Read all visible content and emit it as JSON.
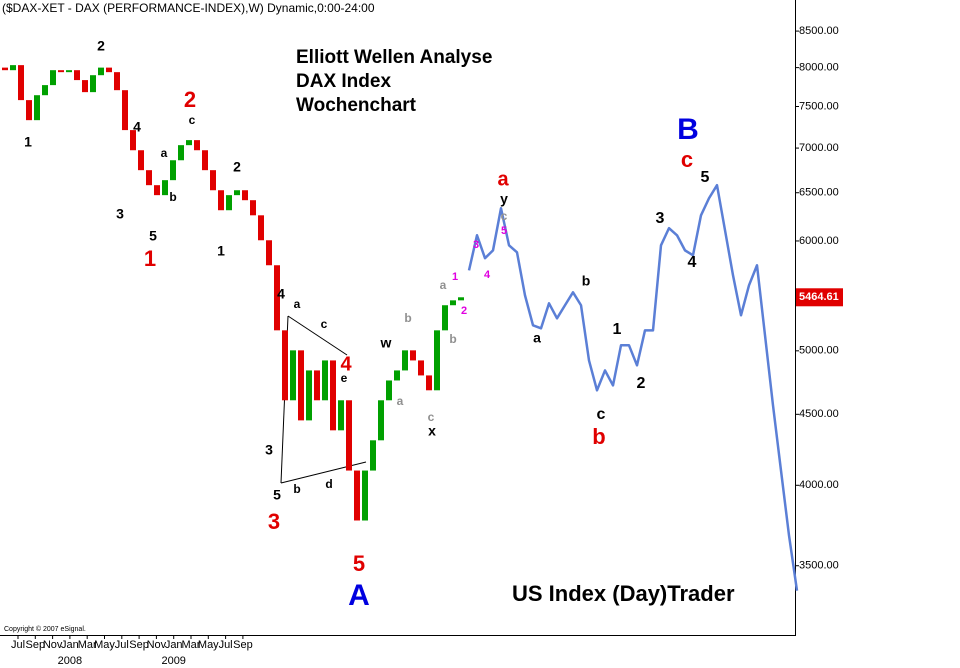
{
  "chart_data": {
    "type": "candlestick",
    "title": "($DAX-XET - DAX (PERFORMANCE-INDEX),W) Dynamic,0:00-24:00",
    "texts": [
      "Elliott Wellen Analyse",
      "DAX Index",
      "Wochenchart"
    ],
    "footer": "US Index (Day)Trader",
    "copyright": "Copyright © 2007 eSignal.",
    "log_scale": true,
    "ylim": [
      3120,
      8950
    ],
    "yticks": [
      {
        "value": 3500,
        "label": "3500.00"
      },
      {
        "value": 4000,
        "label": "4000.00"
      },
      {
        "value": 4500,
        "label": "4500.00"
      },
      {
        "value": 5000,
        "label": "5000.00"
      },
      {
        "value": 6000,
        "label": "6000.00"
      },
      {
        "value": 6500,
        "label": "6500.00"
      },
      {
        "value": 7000,
        "label": "7000.00"
      },
      {
        "value": 7500,
        "label": "7500.00"
      },
      {
        "value": 8000,
        "label": "8000.00"
      },
      {
        "value": 8500,
        "label": "8500.00"
      }
    ],
    "x_labels": [
      {
        "month": "Jul"
      },
      {
        "month": "Sep"
      },
      {
        "month": "Nov"
      },
      {
        "month": "Jan",
        "year": "2008"
      },
      {
        "month": "Mar"
      },
      {
        "month": "May"
      },
      {
        "month": "Jul"
      },
      {
        "month": "Sep"
      },
      {
        "month": "Nov"
      },
      {
        "month": "Jan",
        "year": "2009"
      },
      {
        "month": "Mar"
      },
      {
        "month": "May"
      },
      {
        "month": "Jul"
      },
      {
        "month": "Sep"
      }
    ],
    "up_color": "#00a000",
    "down_color": "#e00000",
    "open": [
      8000,
      7966,
      8033,
      7580,
      7332,
      7642,
      7771,
      7966,
      7940,
      7966,
      7836,
      7681,
      7900,
      8000,
      7940,
      7706,
      7212,
      6975,
      6748,
      6582,
      6474,
      6637,
      6860,
      7034,
      7093,
      6975,
      6748,
      6527,
      6314,
      6474,
      6527,
      6420,
      6261,
      6007,
      5763,
      5173,
      4606,
      5004,
      4455,
      4840,
      4606,
      4921,
      4382,
      4606,
      4099,
      3773,
      4099,
      4310,
      4606,
      4760,
      4840,
      5004,
      4921,
      4800,
      4683,
      5173,
      5393,
      5437
    ],
    "close": [
      7966,
      8033,
      7580,
      7332,
      7642,
      7771,
      7966,
      7940,
      7966,
      7836,
      7681,
      7900,
      8000,
      7940,
      7706,
      7212,
      6975,
      6748,
      6582,
      6474,
      6637,
      6860,
      7034,
      7093,
      6975,
      6748,
      6527,
      6314,
      6474,
      6527,
      6420,
      6261,
      6007,
      5763,
      5173,
      4606,
      5004,
      4455,
      4840,
      4606,
      4921,
      4382,
      4606,
      4099,
      3773,
      4099,
      4310,
      4606,
      4760,
      4840,
      5004,
      4921,
      4800,
      4683,
      5173,
      5393,
      5437,
      5464.61
    ],
    "last_price": 5464.61,
    "last_price_color": "#e00000",
    "projection": {
      "color": "#5b7fd6",
      "values": [
        5714,
        6057,
        5831,
        5907,
        6335,
        5957,
        5888,
        5482,
        5216,
        5190,
        5410,
        5277,
        5393,
        5510,
        5393,
        4921,
        4683,
        4840,
        4721,
        5046,
        5046,
        4881,
        5173,
        5173,
        5957,
        6129,
        6057,
        5907,
        5859,
        6261,
        6441,
        6582,
        6108,
        5668,
        5304,
        5574,
        5763,
        5131,
        4567,
        4099,
        3681,
        3358
      ]
    },
    "annotations": [
      {
        "text": "1",
        "color": "#000"
      },
      {
        "text": "2",
        "color": "#000"
      },
      {
        "text": "3",
        "color": "#000"
      },
      {
        "text": "4",
        "color": "#000"
      },
      {
        "text": "a",
        "color": "#000"
      },
      {
        "text": "b",
        "color": "#000"
      },
      {
        "text": "c",
        "color": "#000"
      },
      {
        "text": "5",
        "color": "#000"
      },
      {
        "text": "1",
        "color": "#e00000"
      },
      {
        "text": "2",
        "color": "#e00000"
      },
      {
        "text": "2",
        "color": "#000"
      },
      {
        "text": "1",
        "color": "#000"
      },
      {
        "text": "4",
        "color": "#000"
      },
      {
        "text": "a",
        "color": "#000"
      },
      {
        "text": "c",
        "color": "#000"
      },
      {
        "text": "4",
        "color": "#e00000"
      },
      {
        "text": "e",
        "color": "#000"
      },
      {
        "text": "3",
        "color": "#000"
      },
      {
        "text": "b",
        "color": "#000"
      },
      {
        "text": "d",
        "color": "#000"
      },
      {
        "text": "5",
        "color": "#000"
      },
      {
        "text": "3",
        "color": "#e00000"
      },
      {
        "text": "5",
        "color": "#e00000"
      },
      {
        "text": "A",
        "color": "#0000e0"
      },
      {
        "text": "w",
        "color": "#000"
      },
      {
        "text": "b",
        "color": "#909090"
      },
      {
        "text": "a",
        "color": "#909090"
      },
      {
        "text": "c",
        "color": "#909090"
      },
      {
        "text": "x",
        "color": "#000"
      },
      {
        "text": "a",
        "color": "#909090"
      },
      {
        "text": "1",
        "color": "#e000e0"
      },
      {
        "text": "2",
        "color": "#e000e0"
      },
      {
        "text": "b",
        "color": "#909090"
      },
      {
        "text": "3",
        "color": "#e000e0"
      },
      {
        "text": "4",
        "color": "#e000e0"
      },
      {
        "text": "a",
        "color": "#e00000"
      },
      {
        "text": "y",
        "color": "#000"
      },
      {
        "text": "c",
        "color": "#909090"
      },
      {
        "text": "5",
        "color": "#e000e0"
      },
      {
        "text": "a",
        "color": "#000"
      },
      {
        "text": "b",
        "color": "#000"
      },
      {
        "text": "1",
        "color": "#000"
      },
      {
        "text": "2",
        "color": "#000"
      },
      {
        "text": "c",
        "color": "#000"
      },
      {
        "text": "b",
        "color": "#e00000"
      },
      {
        "text": "3",
        "color": "#000"
      },
      {
        "text": "4",
        "color": "#000"
      },
      {
        "text": "5",
        "color": "#000"
      },
      {
        "text": "c",
        "color": "#e00000"
      },
      {
        "text": "B",
        "color": "#0000e0"
      }
    ]
  }
}
